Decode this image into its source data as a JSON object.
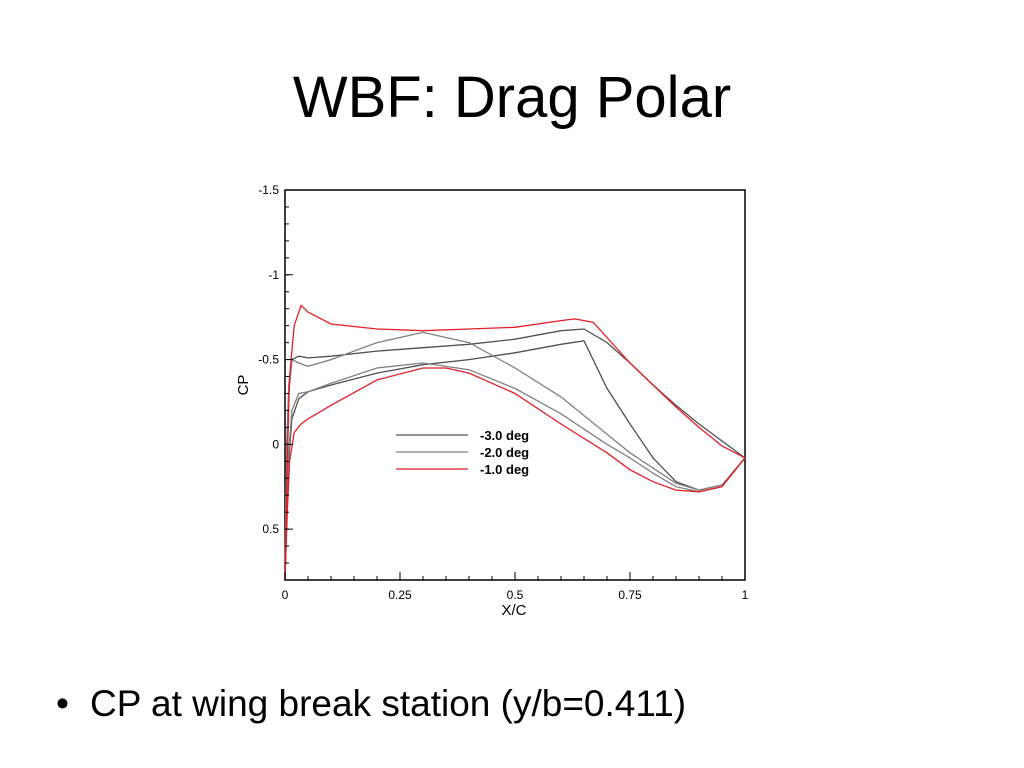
{
  "slide": {
    "title": "WBF: Drag Polar",
    "bullet_symbol": "•",
    "bullet_text": "CP at wing break station (y/b=0.411)"
  },
  "chart_data": {
    "type": "line",
    "xlabel": "X/C",
    "ylabel": "CP",
    "xlim": [
      0,
      1
    ],
    "ylim": [
      0.8,
      -1.5
    ],
    "y_inverted": true,
    "xticks": [
      0,
      0.25,
      0.5,
      0.75,
      1
    ],
    "xtick_labels": [
      "0",
      "0.25",
      "0.5",
      "0.75",
      "1"
    ],
    "yticks": [
      -1.5,
      -1,
      -0.5,
      0,
      0.5
    ],
    "ytick_labels": [
      "-1.5",
      "-1",
      "-0.5",
      "0",
      "0.5"
    ],
    "grid": false,
    "legend_position": "center-left",
    "series": [
      {
        "name": "-3.0 deg",
        "color": "#505050",
        "upper": [
          [
            0.0,
            0.8
          ],
          [
            0.003,
            0.1
          ],
          [
            0.008,
            -0.3
          ],
          [
            0.015,
            -0.5
          ],
          [
            0.03,
            -0.52
          ],
          [
            0.05,
            -0.51
          ],
          [
            0.1,
            -0.52
          ],
          [
            0.2,
            -0.55
          ],
          [
            0.3,
            -0.57
          ],
          [
            0.4,
            -0.59
          ],
          [
            0.5,
            -0.62
          ],
          [
            0.6,
            -0.67
          ],
          [
            0.65,
            -0.68
          ],
          [
            0.7,
            -0.6
          ],
          [
            0.75,
            -0.48
          ],
          [
            0.8,
            -0.35
          ],
          [
            0.85,
            -0.23
          ],
          [
            0.9,
            -0.12
          ],
          [
            0.95,
            -0.02
          ],
          [
            1.0,
            0.08
          ]
        ],
        "lower": [
          [
            0.0,
            0.8
          ],
          [
            0.003,
            0.5
          ],
          [
            0.008,
            0.1
          ],
          [
            0.015,
            -0.15
          ],
          [
            0.03,
            -0.27
          ],
          [
            0.05,
            -0.31
          ],
          [
            0.1,
            -0.35
          ],
          [
            0.2,
            -0.42
          ],
          [
            0.3,
            -0.47
          ],
          [
            0.4,
            -0.5
          ],
          [
            0.5,
            -0.54
          ],
          [
            0.6,
            -0.59
          ],
          [
            0.65,
            -0.61
          ],
          [
            0.7,
            -0.33
          ],
          [
            0.75,
            -0.12
          ],
          [
            0.8,
            0.08
          ],
          [
            0.85,
            0.22
          ],
          [
            0.9,
            0.27
          ],
          [
            0.95,
            0.24
          ],
          [
            1.0,
            0.08
          ]
        ]
      },
      {
        "name": "-2.0 deg",
        "color": "#808080",
        "upper": [
          [
            0.0,
            0.8
          ],
          [
            0.003,
            0.05
          ],
          [
            0.008,
            -0.35
          ],
          [
            0.015,
            -0.5
          ],
          [
            0.03,
            -0.48
          ],
          [
            0.05,
            -0.46
          ],
          [
            0.1,
            -0.5
          ],
          [
            0.2,
            -0.6
          ],
          [
            0.3,
            -0.66
          ],
          [
            0.4,
            -0.6
          ],
          [
            0.5,
            -0.45
          ],
          [
            0.6,
            -0.28
          ],
          [
            0.7,
            -0.06
          ],
          [
            0.75,
            0.05
          ],
          [
            0.8,
            0.14
          ],
          [
            0.85,
            0.23
          ],
          [
            0.9,
            0.27
          ],
          [
            0.95,
            0.24
          ],
          [
            1.0,
            0.08
          ]
        ],
        "lower": [
          [
            0.0,
            0.8
          ],
          [
            0.003,
            0.45
          ],
          [
            0.008,
            0.05
          ],
          [
            0.015,
            -0.2
          ],
          [
            0.03,
            -0.3
          ],
          [
            0.05,
            -0.31
          ],
          [
            0.1,
            -0.36
          ],
          [
            0.2,
            -0.45
          ],
          [
            0.3,
            -0.48
          ],
          [
            0.4,
            -0.44
          ],
          [
            0.5,
            -0.33
          ],
          [
            0.6,
            -0.18
          ],
          [
            0.7,
            0.0
          ],
          [
            0.75,
            0.08
          ],
          [
            0.8,
            0.17
          ],
          [
            0.85,
            0.25
          ],
          [
            0.9,
            0.28
          ],
          [
            0.95,
            0.25
          ],
          [
            1.0,
            0.08
          ]
        ]
      },
      {
        "name": "-1.0 deg",
        "color": "#e21f26",
        "upper": [
          [
            0.0,
            0.8
          ],
          [
            0.005,
            0.1
          ],
          [
            0.01,
            -0.4
          ],
          [
            0.02,
            -0.7
          ],
          [
            0.035,
            -0.82
          ],
          [
            0.05,
            -0.78
          ],
          [
            0.1,
            -0.71
          ],
          [
            0.2,
            -0.68
          ],
          [
            0.3,
            -0.67
          ],
          [
            0.4,
            -0.68
          ],
          [
            0.5,
            -0.69
          ],
          [
            0.6,
            -0.73
          ],
          [
            0.63,
            -0.74
          ],
          [
            0.67,
            -0.72
          ],
          [
            0.7,
            -0.63
          ],
          [
            0.75,
            -0.48
          ],
          [
            0.8,
            -0.35
          ],
          [
            0.85,
            -0.22
          ],
          [
            0.9,
            -0.1
          ],
          [
            0.95,
            0.01
          ],
          [
            1.0,
            0.08
          ]
        ],
        "lower": [
          [
            0.0,
            0.8
          ],
          [
            0.005,
            0.4
          ],
          [
            0.01,
            0.1
          ],
          [
            0.02,
            -0.07
          ],
          [
            0.035,
            -0.12
          ],
          [
            0.05,
            -0.15
          ],
          [
            0.1,
            -0.23
          ],
          [
            0.2,
            -0.38
          ],
          [
            0.3,
            -0.45
          ],
          [
            0.35,
            -0.45
          ],
          [
            0.4,
            -0.42
          ],
          [
            0.5,
            -0.3
          ],
          [
            0.6,
            -0.12
          ],
          [
            0.7,
            0.05
          ],
          [
            0.75,
            0.15
          ],
          [
            0.8,
            0.22
          ],
          [
            0.85,
            0.27
          ],
          [
            0.9,
            0.28
          ],
          [
            0.95,
            0.25
          ],
          [
            1.0,
            0.08
          ]
        ]
      }
    ]
  }
}
